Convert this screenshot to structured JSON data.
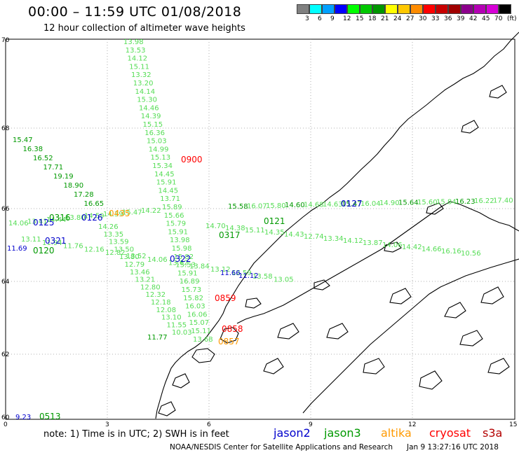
{
  "header": {
    "title": "00:00 – 11:59 UTC 01/08/2018",
    "subtitle": "12 hour collection of altimeter wave heights"
  },
  "colorbar": {
    "colors": [
      "#808080",
      "#00ffff",
      "#00a0ff",
      "#0000ff",
      "#00ff00",
      "#00c800",
      "#009600",
      "#ffff00",
      "#ffc800",
      "#ff8c00",
      "#ff0000",
      "#c80000",
      "#a00000",
      "#8c008c",
      "#b400b4",
      "#d700d7",
      "#000000"
    ],
    "labels": [
      "3",
      "6",
      "9",
      "12",
      "15",
      "18",
      "21",
      "24",
      "27",
      "30",
      "33",
      "36",
      "39",
      "42",
      "45",
      "70",
      "(ft)"
    ]
  },
  "axes": {
    "x_ticks": [
      "0",
      "3",
      "6",
      "9",
      "12",
      "15"
    ],
    "y_ticks": [
      "70",
      "68",
      "66",
      "64",
      "62",
      "60"
    ]
  },
  "tracks": {
    "colors": {
      "jason3_light": "#55dd55",
      "jason3_dark": "#009900",
      "jason2": "#0000cc",
      "altika": "#ff9900",
      "cryosat": "#ff0000",
      "s3a": "#cc0000"
    },
    "northsouth": [
      "13.98",
      "13.53",
      "14.12",
      "15.11",
      "13.32",
      "13.20",
      "14.14",
      "15.30",
      "14.46",
      "14.39",
      "15.15",
      "16.36",
      "15.03",
      "14.99",
      "15.13",
      "15.34",
      "14.45",
      "15.91",
      "14.45",
      "13.71",
      "15.89",
      "15.66",
      "15.79",
      "15.91",
      "13.98",
      "15.98",
      "15.82",
      "15.53",
      "15.91",
      "16.89",
      "15.73",
      "15.82",
      "16.03",
      "16.06",
      "15.07",
      "15.11",
      "13.68"
    ],
    "diag_left": [
      "15.47",
      "16.38",
      "16.52",
      "17.71",
      "19.19",
      "18.90",
      "17.28",
      "16.65"
    ],
    "diag_right": [
      "14.26",
      "13.35",
      "13.59",
      "13.50",
      "13.80",
      "12.79",
      "13.46",
      "13.21",
      "12.80",
      "12.32",
      "12.18",
      "12.08",
      "13.10",
      "11.55",
      "10.03"
    ],
    "east_top": [
      "15.58",
      "16.07",
      "15.80",
      "14.60",
      "14.68",
      "14.63",
      "15.47",
      "16.04",
      "14.90",
      "15.64",
      "15.60",
      "15.84",
      "16.23",
      "16.22",
      "17.40"
    ],
    "east_mid": [
      "14.70",
      "14.38",
      "15.11",
      "14.35",
      "14.43",
      "12.74",
      "13.34",
      "14.12",
      "13.87",
      "14.06",
      "14.42",
      "14.66",
      "16.16",
      "10.56"
    ],
    "west_row": [
      "14.06",
      "13.41",
      "14.44",
      "13.80",
      "14.59",
      "14.39",
      "15.47",
      "14.22"
    ],
    "lower_row": [
      "13.11",
      "11.94",
      "11.76",
      "12.16",
      "12.82",
      "13.52",
      "14.06",
      "13.62",
      "13.84",
      "13.12",
      "12.59",
      "13.58",
      "13.05"
    ],
    "passes": {
      "p0900": "0900",
      "p0435": "0435",
      "p0316": "0316",
      "p0126": "0126",
      "p0125": "0125",
      "p0321": "0321",
      "p0120": "0120",
      "p0322": "0322",
      "p0317": "0317",
      "p0121": "0121",
      "p0127": "0127",
      "p0859": "0859",
      "p0858": "0858",
      "p0513": "0513",
      "p0857": "0857"
    },
    "misc_values": {
      "v1169": "11.69",
      "v1166": "11.66",
      "v1112": "11.12",
      "v923": "9.23",
      "v1177": "11.77"
    }
  },
  "footer": {
    "note": "note:  1) Time is in UTC;  2) SWH is in feet",
    "credit": "NOAA/NESDIS Center for Satellite Applications and Research",
    "date": "Jan  9 13:27:16 UTC 2018",
    "legend": [
      {
        "name": "jason2",
        "color": "#0000cc"
      },
      {
        "name": "jason3",
        "color": "#009900"
      },
      {
        "name": "altika",
        "color": "#ff9900"
      },
      {
        "name": "cryosat",
        "color": "#ff0000"
      },
      {
        "name": "s3a",
        "color": "#b30000"
      }
    ]
  }
}
